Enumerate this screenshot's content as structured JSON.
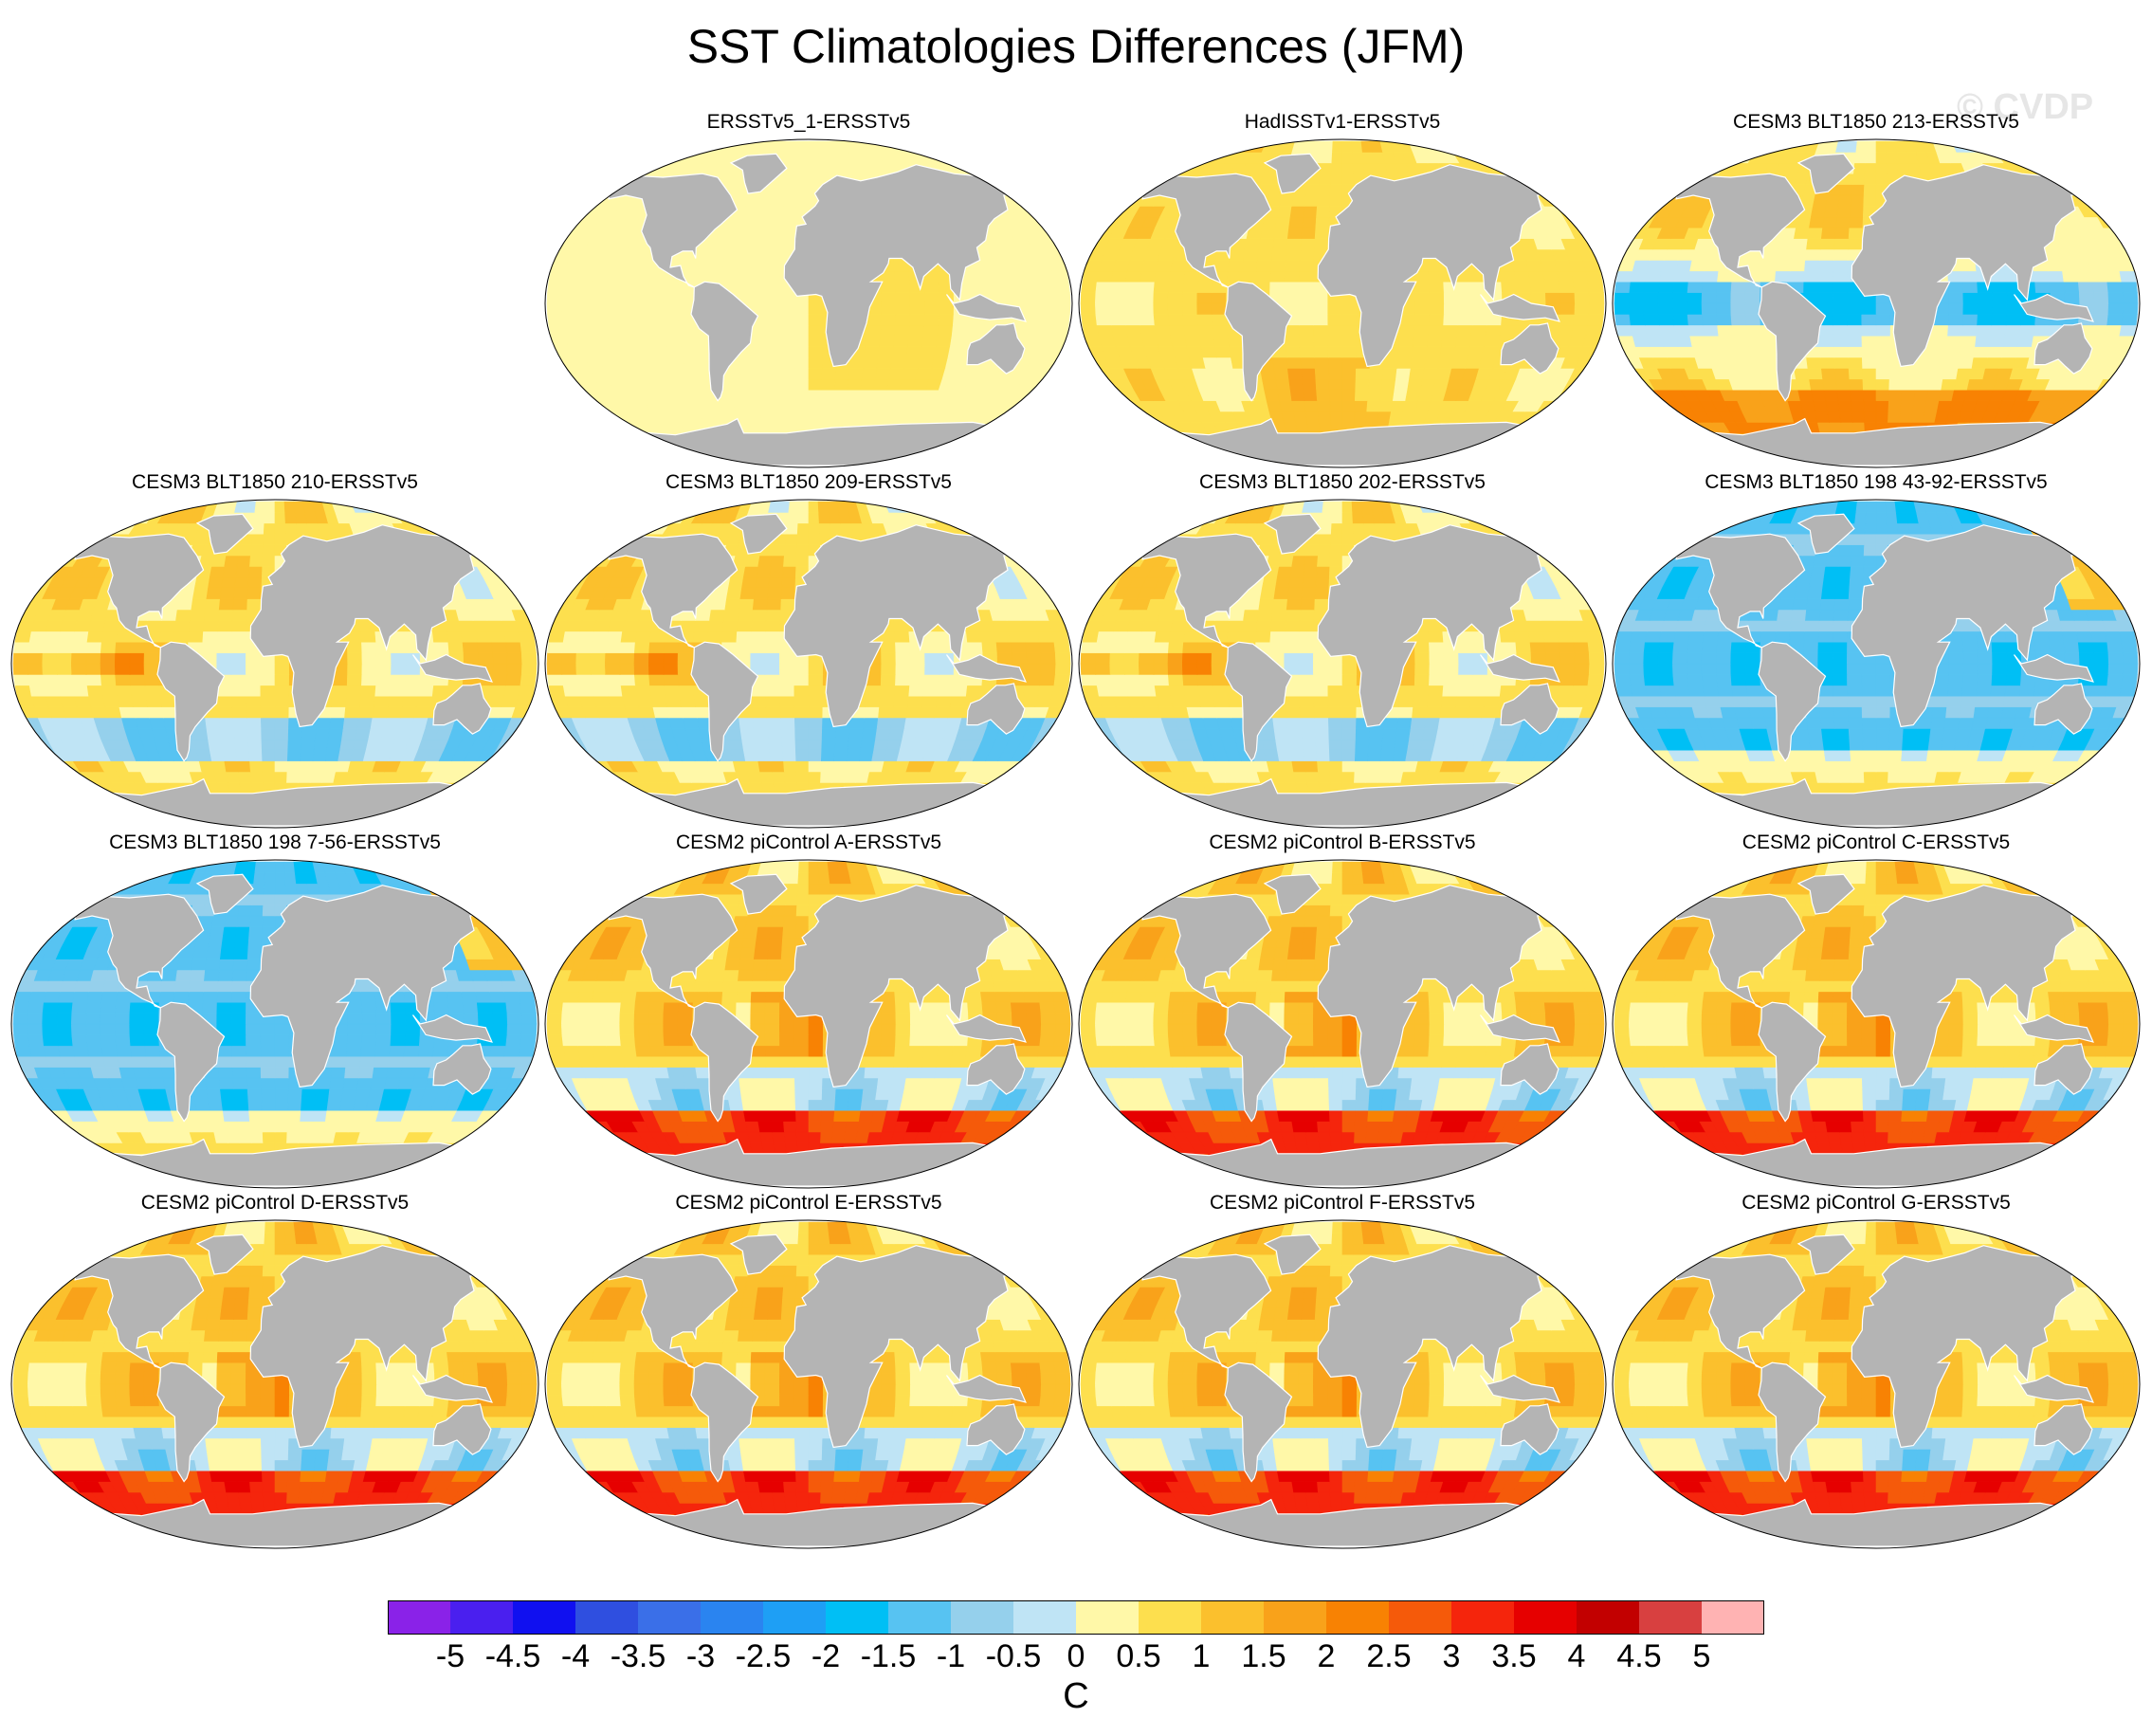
{
  "figure": {
    "title": "SST Climatologies Differences (JFM)",
    "watermark": "© CVDP"
  },
  "panels": [
    {
      "title": "ERSSTv5_1-ERSSTv5",
      "pattern": "near-zero",
      "row": 0,
      "col": 1
    },
    {
      "title": "HadISSTv1-ERSSTv5",
      "pattern": "slight-warm",
      "row": 0,
      "col": 2
    },
    {
      "title": "CESM3 BLT1850 213-ERSSTv5",
      "pattern": "cesm3-cool",
      "row": 0,
      "col": 3
    },
    {
      "title": "CESM3 BLT1850 210-ERSSTv5",
      "pattern": "cesm3-mixed",
      "row": 1,
      "col": 0
    },
    {
      "title": "CESM3 BLT1850 209-ERSSTv5",
      "pattern": "cesm3-mixed",
      "row": 1,
      "col": 1
    },
    {
      "title": "CESM3 BLT1850 202-ERSSTv5",
      "pattern": "cesm3-mixed",
      "row": 1,
      "col": 2
    },
    {
      "title": "CESM3 BLT1850 198 43-92-ERSSTv5",
      "pattern": "cesm3-cold",
      "row": 1,
      "col": 3
    },
    {
      "title": "CESM3 BLT1850 198 7-56-ERSSTv5",
      "pattern": "cesm3-cold",
      "row": 2,
      "col": 0
    },
    {
      "title": "CESM2 piControl A-ERSSTv5",
      "pattern": "cesm2-warm",
      "row": 2,
      "col": 1
    },
    {
      "title": "CESM2 piControl B-ERSSTv5",
      "pattern": "cesm2-warm",
      "row": 2,
      "col": 2
    },
    {
      "title": "CESM2 piControl C-ERSSTv5",
      "pattern": "cesm2-warm",
      "row": 2,
      "col": 3
    },
    {
      "title": "CESM2 piControl D-ERSSTv5",
      "pattern": "cesm2-warm",
      "row": 3,
      "col": 0
    },
    {
      "title": "CESM2 piControl E-ERSSTv5",
      "pattern": "cesm2-warm",
      "row": 3,
      "col": 1
    },
    {
      "title": "CESM2 piControl F-ERSSTv5",
      "pattern": "cesm2-warm",
      "row": 3,
      "col": 2
    },
    {
      "title": "CESM2 piControl G-ERSSTv5",
      "pattern": "cesm2-warm",
      "row": 3,
      "col": 3
    }
  ],
  "colorbar": {
    "unit": "C",
    "labels": [
      "-5",
      "-4.5",
      "-4",
      "-3.5",
      "-3",
      "-2.5",
      "-2",
      "-1.5",
      "-1",
      "-0.5",
      "0",
      "0.5",
      "1",
      "1.5",
      "2",
      "2.5",
      "3",
      "3.5",
      "4",
      "4.5",
      "5"
    ],
    "colors": [
      "#8a22e8",
      "#4a1fef",
      "#1010f0",
      "#2f4fe0",
      "#3a6fe8",
      "#2a84f0",
      "#1e9ff5",
      "#00bff5",
      "#57c3f2",
      "#95d0ec",
      "#bfe4f5",
      "#fff8a8",
      "#fddf4e",
      "#fbc02d",
      "#f9a21a",
      "#f88203",
      "#f55a0a",
      "#f5250c",
      "#e60000",
      "#c20000",
      "#d84040",
      "#ffb3b3"
    ]
  },
  "palette": {
    "land": "#b4b4b4",
    "background": "#ffffff"
  }
}
